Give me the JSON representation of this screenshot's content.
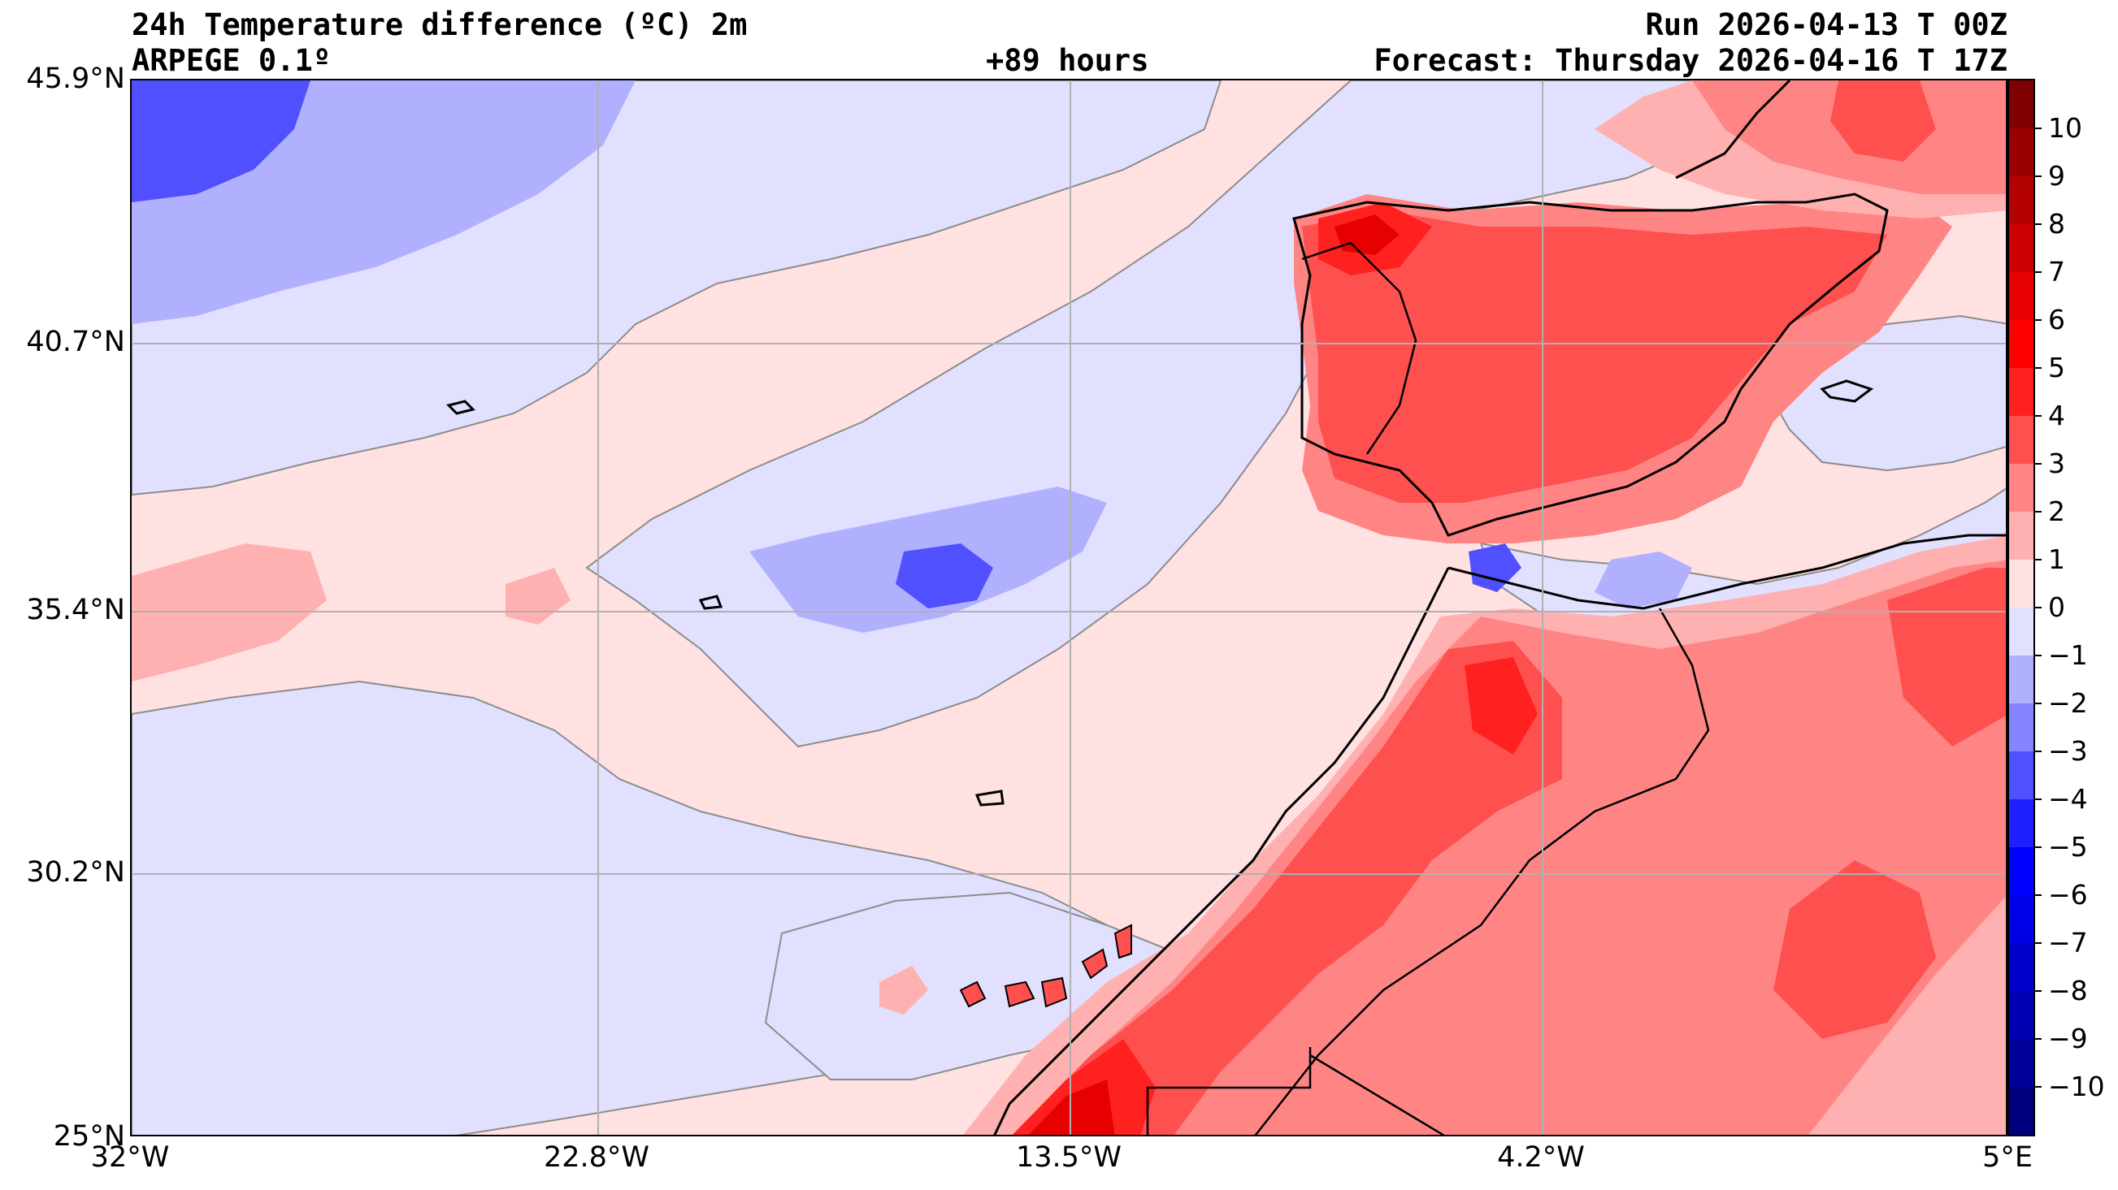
{
  "header": {
    "title": "24h Temperature difference (ºC) 2m",
    "model": "ARPEGE 0.1º",
    "lead": "+89 hours",
    "run": "Run 2026-04-13 T 00Z",
    "forecast": "Forecast: Thursday 2026-04-16 T 17Z"
  },
  "map": {
    "lon_min": -32,
    "lon_max": 5,
    "lat_min": 25,
    "lat_max": 45.9,
    "lat_labels": [
      "45.9°N",
      "40.7°N",
      "35.4°N",
      "30.2°N",
      "25°N"
    ],
    "lat_values": [
      45.9,
      40.7,
      35.4,
      30.2,
      25.0
    ],
    "lon_labels": [
      "32°W",
      "22.8°W",
      "13.5°W",
      "4.2°W",
      "5°E"
    ],
    "lon_values": [
      -32,
      -22.8,
      -13.5,
      -4.2,
      5
    ],
    "grid": true
  },
  "colorbar": {
    "ticks": [
      "10",
      "9",
      "8",
      "7",
      "6",
      "5",
      "4",
      "3",
      "2",
      "1",
      "0",
      "−1",
      "−2",
      "−3",
      "−4",
      "−5",
      "−6",
      "−7",
      "−8",
      "−9",
      "−10"
    ],
    "levels_top_to_bottom": [
      {
        "range": ">10",
        "color": "#7f0000"
      },
      {
        "range": "9–10",
        "color": "#990000"
      },
      {
        "range": "8–9",
        "color": "#b30000"
      },
      {
        "range": "7–8",
        "color": "#cc0000"
      },
      {
        "range": "6–7",
        "color": "#e60000"
      },
      {
        "range": "5–6",
        "color": "#ff0000"
      },
      {
        "range": "4–5",
        "color": "#ff2020"
      },
      {
        "range": "3–4",
        "color": "#ff5050"
      },
      {
        "range": "2–3",
        "color": "#ff8585"
      },
      {
        "range": "1–2",
        "color": "#ffb0b0"
      },
      {
        "range": "0–1",
        "color": "#ffe1e1"
      },
      {
        "range": "−1–0",
        "color": "#e1e1ff"
      },
      {
        "range": "−2–−1",
        "color": "#b0b0ff"
      },
      {
        "range": "−3–−2",
        "color": "#8585ff"
      },
      {
        "range": "−4–−3",
        "color": "#5050ff"
      },
      {
        "range": "−5–−4",
        "color": "#2020ff"
      },
      {
        "range": "−6–−5",
        "color": "#0000ff"
      },
      {
        "range": "−7–−6",
        "color": "#0000e6"
      },
      {
        "range": "−8–−7",
        "color": "#0000cc"
      },
      {
        "range": "−9–−8",
        "color": "#0000b3"
      },
      {
        "range": "−10–−9",
        "color": "#000099"
      },
      {
        "range": "<−10",
        "color": "#00007f"
      }
    ]
  }
}
